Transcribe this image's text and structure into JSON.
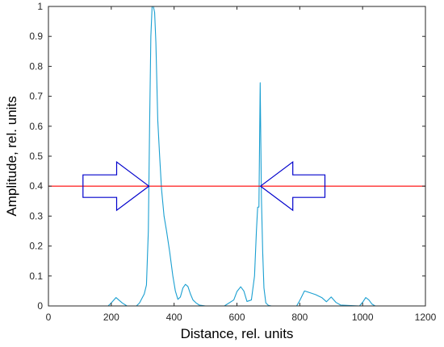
{
  "chart_data": {
    "type": "line",
    "xlabel": "Distance, rel. units",
    "ylabel": "Amplitude, rel. units",
    "xlim": [
      0,
      1200
    ],
    "ylim": [
      0,
      1
    ],
    "x_ticks": [
      0,
      200,
      400,
      600,
      800,
      1000,
      1200
    ],
    "x_tick_labels": [
      "0",
      "200",
      "400",
      "600",
      "800",
      "1000",
      "1200"
    ],
    "y_ticks": [
      0,
      0.1,
      0.2,
      0.3,
      0.4,
      0.5,
      0.6,
      0.7,
      0.8,
      0.9,
      1
    ],
    "y_tick_labels": [
      "0",
      "0.1",
      "0.2",
      "0.3",
      "0.4",
      "0.5",
      "0.6",
      "0.7",
      "0.8",
      "0.9",
      "1"
    ],
    "grid": false,
    "series": [
      {
        "color": "#1a9fd1",
        "x": [
          0,
          190,
          200,
          215,
          235,
          250,
          280,
          290,
          305,
          312,
          318,
          322,
          326,
          330,
          334,
          338,
          342,
          348,
          354,
          360,
          368,
          376,
          386,
          396,
          404,
          412,
          420,
          428,
          436,
          444,
          452,
          460,
          470,
          480,
          500,
          560,
          590,
          600,
          612,
          622,
          632,
          646,
          656,
          662,
          666,
          670,
          674,
          676,
          678,
          682,
          686,
          692,
          700,
          710,
          740,
          790,
          800,
          815,
          830,
          850,
          870,
          885,
          900,
          915,
          930,
          990,
          1000,
          1010,
          1020,
          1030,
          1040,
          1200
        ],
        "y": [
          0,
          0,
          0.01,
          0.028,
          0.01,
          0,
          0,
          0.01,
          0.04,
          0.07,
          0.25,
          0.6,
          0.9,
          1.0,
          1.0,
          0.98,
          0.88,
          0.62,
          0.5,
          0.39,
          0.3,
          0.25,
          0.18,
          0.1,
          0.05,
          0.022,
          0.03,
          0.06,
          0.072,
          0.065,
          0.04,
          0.02,
          0.01,
          0.003,
          0,
          0,
          0.02,
          0.048,
          0.064,
          0.05,
          0.015,
          0.02,
          0.1,
          0.25,
          0.33,
          0.33,
          0.745,
          0.55,
          0.36,
          0.18,
          0.06,
          0.01,
          0.002,
          0,
          0,
          0,
          0.018,
          0.05,
          0.045,
          0.038,
          0.028,
          0.014,
          0.03,
          0.012,
          0.003,
          0,
          0.012,
          0.028,
          0.02,
          0.006,
          0,
          0
        ]
      }
    ],
    "threshold": {
      "y": 0.4,
      "color": "#ff0000"
    },
    "annotations": [
      {
        "type": "arrow",
        "direction": "right",
        "x_from": 110,
        "x_to": 320,
        "y": 0.4,
        "color": "#0000cc"
      },
      {
        "type": "arrow",
        "direction": "left",
        "x_from": 880,
        "x_to": 675,
        "y": 0.4,
        "color": "#0000cc"
      }
    ]
  }
}
